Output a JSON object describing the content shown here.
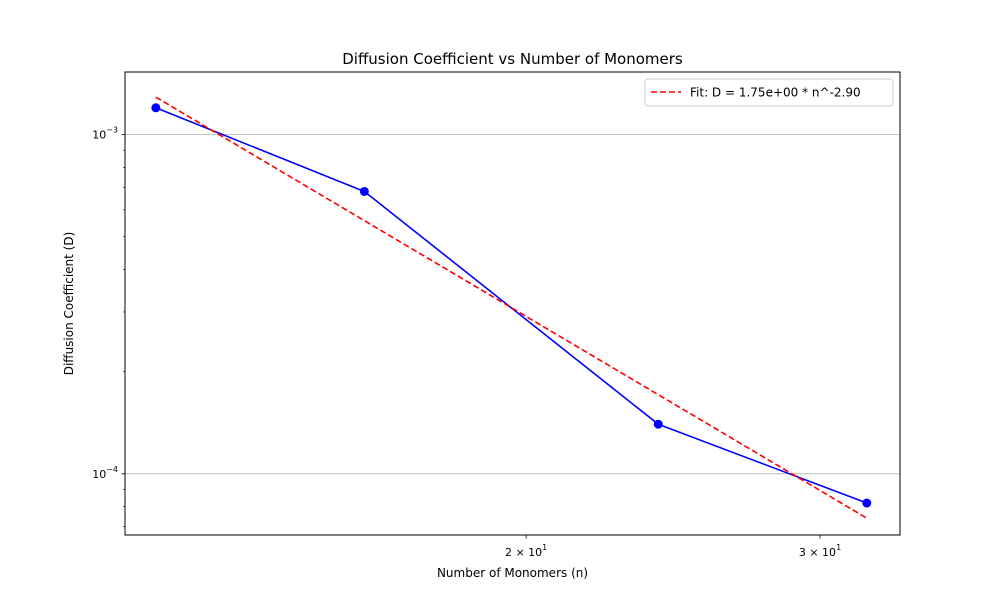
{
  "chart_data": {
    "type": "line",
    "title": "Diffusion Coefficient vs Number of Monomers",
    "xlabel": "Number of Monomers (n)",
    "ylabel": "Diffusion Coefficient (D)",
    "xscale": "log",
    "yscale": "log",
    "xlim": [
      11.5,
      33.5
    ],
    "ylim": [
      6.6e-05,
      0.00153
    ],
    "grid": "y-major",
    "legend_position": "top-right",
    "x_ticks": [
      {
        "value": 20,
        "mantissa": "2",
        "base": "10",
        "exp": "1"
      },
      {
        "value": 30,
        "mantissa": "3",
        "base": "10",
        "exp": "1"
      }
    ],
    "y_ticks": [
      {
        "value": 0.0001,
        "base": "10",
        "exp": "−4"
      },
      {
        "value": 0.001,
        "base": "10",
        "exp": "−3"
      }
    ],
    "series": [
      {
        "style": "solid-markers",
        "color": "#0000ff",
        "x": [
          12,
          16,
          24,
          32
        ],
        "y": [
          0.0012,
          0.00068,
          0.00014,
          8.2e-05
        ]
      },
      {
        "name": "Fit: D = 1.75e+00 * n^-2.90",
        "style": "dashed",
        "color": "#ff0000",
        "x": [
          12,
          32
        ],
        "y": [
          0.00129,
          7.4e-05
        ]
      }
    ]
  }
}
